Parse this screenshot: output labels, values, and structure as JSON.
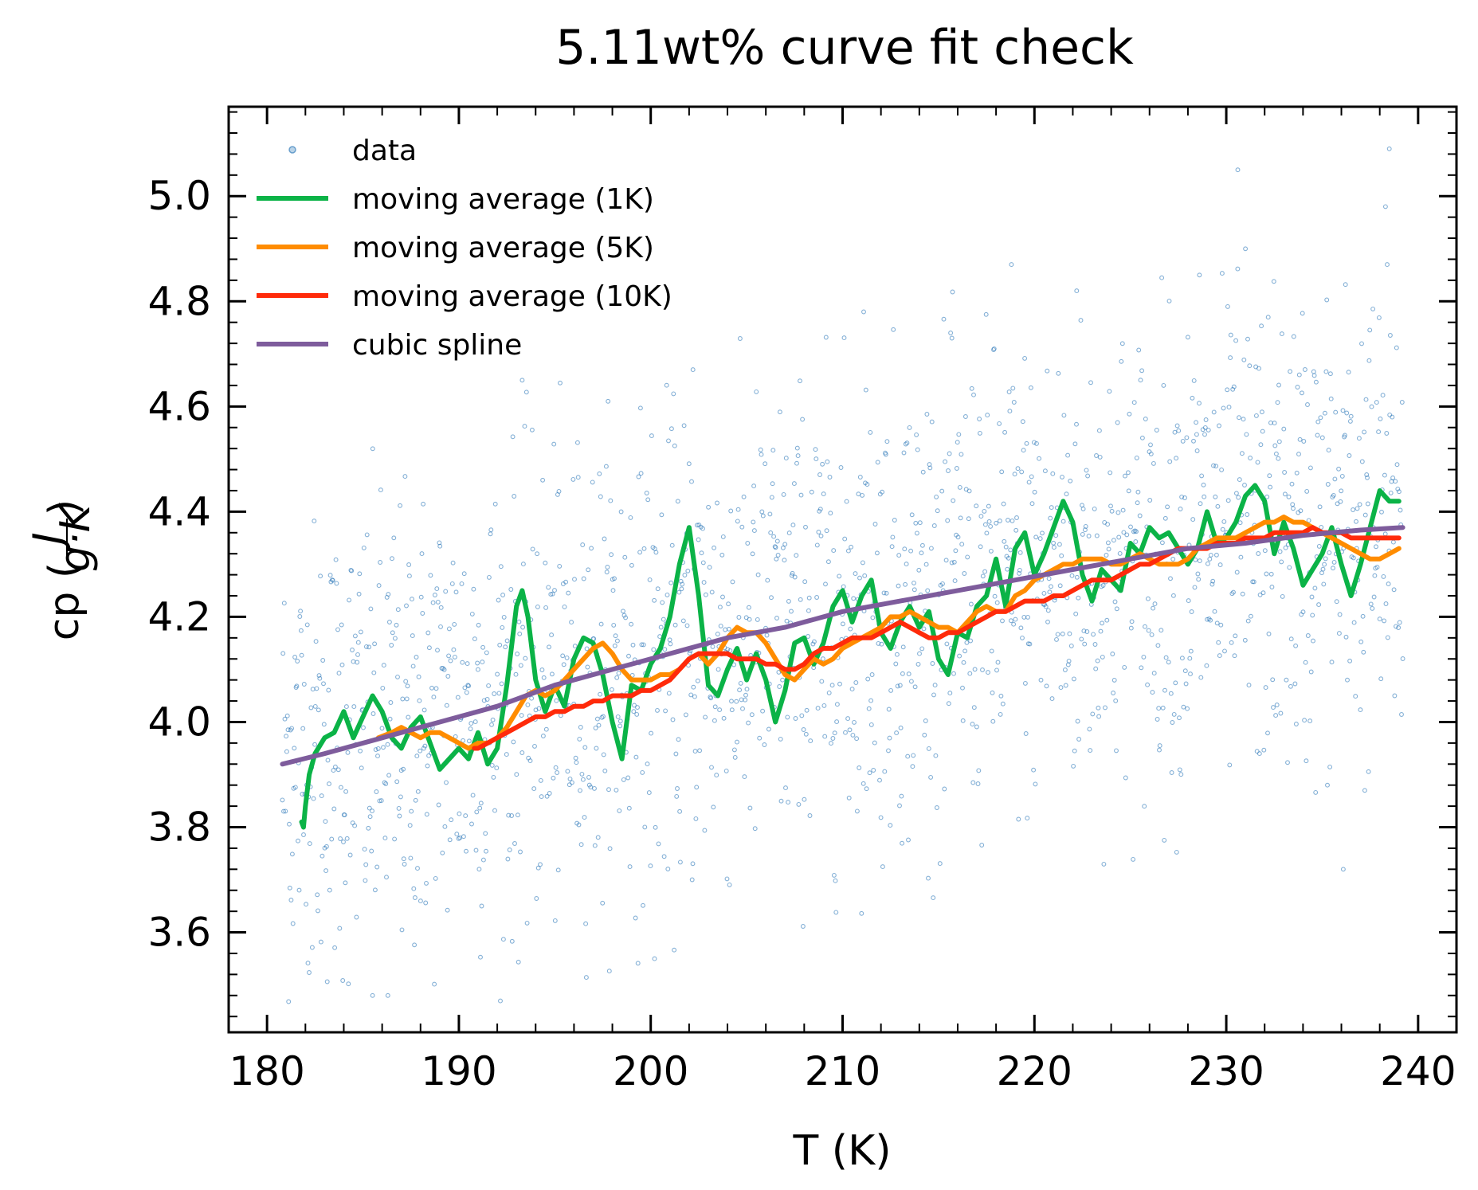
{
  "chart_data": {
    "type": "line",
    "title": "5.11wt% curve fit check",
    "xlabel": "T (K)",
    "ylabel": {
      "base": "cp (",
      "num": "J",
      "den": "g·K",
      "close": ")"
    },
    "xlim": [
      178,
      242
    ],
    "ylim": [
      3.41,
      5.17
    ],
    "xticks": [
      180,
      190,
      200,
      210,
      220,
      230,
      240
    ],
    "yticks": [
      3.6,
      3.8,
      4.0,
      4.2,
      4.4,
      4.6,
      4.8,
      5.0
    ],
    "xtick_labels": [
      "180",
      "190",
      "200",
      "210",
      "220",
      "230",
      "240"
    ],
    "ytick_labels": [
      "3.6",
      "3.8",
      "4.0",
      "4.2",
      "4.4",
      "4.6",
      "4.8",
      "5.0"
    ],
    "grid": false,
    "legend_position": "top-left",
    "series": [
      {
        "name": "data",
        "kind": "scatter",
        "color": "#1f6fb4",
        "x_range": [
          180.8,
          239.2
        ],
        "count": 1800,
        "trend": {
          "x": [
            181,
            190,
            200,
            210,
            220,
            230,
            239
          ],
          "y": [
            3.92,
            4.02,
            4.12,
            4.2,
            4.28,
            4.34,
            4.37
          ]
        },
        "spread_sd": 0.22,
        "outliers": [
          [
            185.5,
            3.48
          ],
          [
            186.3,
            3.48
          ],
          [
            193.3,
            4.65
          ],
          [
            200.2,
            3.55
          ],
          [
            202.2,
            4.67
          ],
          [
            211.1,
            4.78
          ],
          [
            215.7,
            4.73
          ],
          [
            218.8,
            4.87
          ],
          [
            222.2,
            4.82
          ],
          [
            228.6,
            4.85
          ],
          [
            230.6,
            5.05
          ],
          [
            231.0,
            4.9
          ],
          [
            238.5,
            5.09
          ],
          [
            238.3,
            4.98
          ],
          [
            236.1,
            3.72
          ]
        ]
      },
      {
        "name": "moving average (1K)",
        "kind": "line",
        "color": "#0bb347",
        "x": [
          181.8,
          181.9,
          182.0,
          182.2,
          182.5,
          183.0,
          183.5,
          184.0,
          184.5,
          185.0,
          185.5,
          186.0,
          186.5,
          187.0,
          187.5,
          188.0,
          188.5,
          189.0,
          189.5,
          190.0,
          190.5,
          191.0,
          191.5,
          192.0,
          192.5,
          193.0,
          193.3,
          193.6,
          194.0,
          194.5,
          195.0,
          195.5,
          196.0,
          196.5,
          197.0,
          197.5,
          198.0,
          198.5,
          199.0,
          199.5,
          200.0,
          200.5,
          201.0,
          201.5,
          202.0,
          202.5,
          203.0,
          203.5,
          204.0,
          204.5,
          205.0,
          205.5,
          206.0,
          206.5,
          207.0,
          207.5,
          208.0,
          208.5,
          209.0,
          209.5,
          210.0,
          210.5,
          211.0,
          211.5,
          212.0,
          212.5,
          213.0,
          213.5,
          214.0,
          214.5,
          215.0,
          215.5,
          216.0,
          216.5,
          217.0,
          217.5,
          218.0,
          218.5,
          219.0,
          219.5,
          220.0,
          220.5,
          221.0,
          221.5,
          222.0,
          222.5,
          223.0,
          223.5,
          224.0,
          224.5,
          225.0,
          225.5,
          226.0,
          226.5,
          227.0,
          227.5,
          228.0,
          228.5,
          229.0,
          229.5,
          230.0,
          230.5,
          231.0,
          231.5,
          232.0,
          232.5,
          233.0,
          233.5,
          234.0,
          234.5,
          235.0,
          235.5,
          236.0,
          236.5,
          237.0,
          237.5,
          238.0,
          238.5,
          239.0
        ],
        "y": [
          3.81,
          3.8,
          3.84,
          3.9,
          3.94,
          3.97,
          3.98,
          4.02,
          3.97,
          4.01,
          4.05,
          4.02,
          3.97,
          3.95,
          3.99,
          4.01,
          3.96,
          3.91,
          3.93,
          3.95,
          3.93,
          3.98,
          3.92,
          3.95,
          4.07,
          4.22,
          4.25,
          4.2,
          4.08,
          4.02,
          4.07,
          4.03,
          4.12,
          4.16,
          4.15,
          4.09,
          4.0,
          3.93,
          4.07,
          4.06,
          4.11,
          4.14,
          4.2,
          4.3,
          4.37,
          4.24,
          4.07,
          4.05,
          4.1,
          4.14,
          4.08,
          4.13,
          4.08,
          4.0,
          4.06,
          4.15,
          4.16,
          4.11,
          4.15,
          4.22,
          4.25,
          4.19,
          4.24,
          4.27,
          4.17,
          4.14,
          4.19,
          4.22,
          4.18,
          4.21,
          4.12,
          4.09,
          4.17,
          4.16,
          4.22,
          4.24,
          4.31,
          4.22,
          4.33,
          4.36,
          4.28,
          4.32,
          4.37,
          4.42,
          4.38,
          4.28,
          4.23,
          4.29,
          4.27,
          4.25,
          4.34,
          4.32,
          4.37,
          4.35,
          4.36,
          4.33,
          4.3,
          4.33,
          4.4,
          4.34,
          4.35,
          4.38,
          4.43,
          4.45,
          4.42,
          4.32,
          4.38,
          4.33,
          4.26,
          4.29,
          4.32,
          4.37,
          4.3,
          4.24,
          4.3,
          4.37,
          4.44,
          4.42,
          4.42
        ]
      },
      {
        "name": "moving average (5K)",
        "kind": "line",
        "color": "#ff8c00",
        "x": [
          185.8,
          186.5,
          187.0,
          187.5,
          188.0,
          188.5,
          189.0,
          189.5,
          190.0,
          190.5,
          191.0,
          191.5,
          192.0,
          192.5,
          193.0,
          193.5,
          194.0,
          194.5,
          195.0,
          195.5,
          196.0,
          196.5,
          197.0,
          197.5,
          198.0,
          198.5,
          199.0,
          199.5,
          200.0,
          200.5,
          201.0,
          201.5,
          202.0,
          202.5,
          203.0,
          203.5,
          204.0,
          204.5,
          205.0,
          205.5,
          206.0,
          206.5,
          207.0,
          207.5,
          208.0,
          208.5,
          209.0,
          209.5,
          210.0,
          210.5,
          211.0,
          211.5,
          212.0,
          212.5,
          213.0,
          213.5,
          214.0,
          214.5,
          215.0,
          215.5,
          216.0,
          216.5,
          217.0,
          217.5,
          218.0,
          218.5,
          219.0,
          219.5,
          220.0,
          220.5,
          221.0,
          221.5,
          222.0,
          222.5,
          223.0,
          223.5,
          224.0,
          224.5,
          225.0,
          225.5,
          226.0,
          226.5,
          227.0,
          227.5,
          228.0,
          228.5,
          229.0,
          229.5,
          230.0,
          230.5,
          231.0,
          231.5,
          232.0,
          232.5,
          233.0,
          233.5,
          234.0,
          234.5,
          235.0,
          235.5,
          236.0,
          236.5,
          237.0,
          237.5,
          238.0,
          238.5,
          239.0
        ],
        "y": [
          3.97,
          3.98,
          3.99,
          3.98,
          3.97,
          3.98,
          3.98,
          3.97,
          3.96,
          3.95,
          3.96,
          3.96,
          3.97,
          3.99,
          4.02,
          4.05,
          4.06,
          4.05,
          4.06,
          4.08,
          4.1,
          4.12,
          4.14,
          4.15,
          4.13,
          4.1,
          4.08,
          4.08,
          4.08,
          4.09,
          4.09,
          4.1,
          4.12,
          4.13,
          4.11,
          4.13,
          4.16,
          4.18,
          4.17,
          4.17,
          4.15,
          4.12,
          4.09,
          4.08,
          4.1,
          4.12,
          4.11,
          4.12,
          4.14,
          4.15,
          4.16,
          4.17,
          4.18,
          4.2,
          4.2,
          4.21,
          4.2,
          4.19,
          4.18,
          4.18,
          4.17,
          4.19,
          4.21,
          4.22,
          4.21,
          4.21,
          4.24,
          4.25,
          4.27,
          4.28,
          4.29,
          4.3,
          4.3,
          4.31,
          4.31,
          4.31,
          4.3,
          4.3,
          4.31,
          4.32,
          4.31,
          4.3,
          4.3,
          4.3,
          4.31,
          4.33,
          4.34,
          4.35,
          4.35,
          4.35,
          4.36,
          4.37,
          4.38,
          4.38,
          4.39,
          4.38,
          4.38,
          4.37,
          4.36,
          4.35,
          4.34,
          4.33,
          4.32,
          4.31,
          4.31,
          4.32,
          4.33
        ]
      },
      {
        "name": "moving average (10K)",
        "kind": "line",
        "color": "#ff2a0a",
        "x": [
          190.8,
          191.0,
          191.5,
          192.0,
          192.5,
          193.0,
          193.5,
          194.0,
          194.5,
          195.0,
          195.5,
          196.0,
          196.5,
          197.0,
          197.5,
          198.0,
          198.5,
          199.0,
          199.5,
          200.0,
          200.5,
          201.0,
          201.5,
          202.0,
          202.5,
          203.0,
          203.5,
          204.0,
          204.5,
          205.0,
          205.5,
          206.0,
          206.5,
          207.0,
          207.5,
          208.0,
          208.5,
          209.0,
          209.5,
          210.0,
          210.5,
          211.0,
          211.5,
          212.0,
          212.5,
          213.0,
          213.5,
          214.0,
          214.5,
          215.0,
          215.5,
          216.0,
          216.5,
          217.0,
          217.5,
          218.0,
          218.5,
          219.0,
          219.5,
          220.0,
          220.5,
          221.0,
          221.5,
          222.0,
          222.5,
          223.0,
          223.5,
          224.0,
          224.5,
          225.0,
          225.5,
          226.0,
          226.5,
          227.0,
          227.5,
          228.0,
          228.5,
          229.0,
          229.5,
          230.0,
          230.5,
          231.0,
          231.5,
          232.0,
          232.5,
          233.0,
          233.5,
          234.0,
          234.5,
          235.0,
          235.5,
          236.0,
          236.5,
          237.0,
          237.5,
          238.0,
          238.5,
          239.0
        ],
        "y": [
          3.95,
          3.95,
          3.96,
          3.97,
          3.98,
          3.99,
          4.0,
          4.01,
          4.01,
          4.02,
          4.02,
          4.03,
          4.03,
          4.04,
          4.04,
          4.05,
          4.05,
          4.05,
          4.06,
          4.06,
          4.07,
          4.08,
          4.1,
          4.12,
          4.13,
          4.13,
          4.13,
          4.13,
          4.12,
          4.12,
          4.12,
          4.11,
          4.11,
          4.1,
          4.1,
          4.11,
          4.13,
          4.14,
          4.14,
          4.15,
          4.16,
          4.16,
          4.16,
          4.17,
          4.18,
          4.19,
          4.18,
          4.17,
          4.16,
          4.16,
          4.17,
          4.17,
          4.18,
          4.19,
          4.2,
          4.21,
          4.21,
          4.22,
          4.23,
          4.23,
          4.23,
          4.24,
          4.24,
          4.25,
          4.26,
          4.27,
          4.27,
          4.27,
          4.28,
          4.29,
          4.3,
          4.3,
          4.31,
          4.32,
          4.33,
          4.33,
          4.33,
          4.33,
          4.34,
          4.34,
          4.34,
          4.35,
          4.35,
          4.35,
          4.36,
          4.36,
          4.36,
          4.36,
          4.37,
          4.36,
          4.36,
          4.36,
          4.35,
          4.35,
          4.35,
          4.35,
          4.35,
          4.35
        ]
      },
      {
        "name": "cubic spline",
        "kind": "line",
        "color": "#7e5c9c",
        "x": [
          180.8,
          183,
          186,
          189,
          192,
          195,
          198,
          201,
          204,
          207,
          210,
          213,
          216,
          219,
          222,
          225,
          228,
          231,
          234,
          237,
          239.2
        ],
        "y": [
          3.92,
          3.94,
          3.97,
          4.0,
          4.03,
          4.07,
          4.1,
          4.13,
          4.16,
          4.18,
          4.21,
          4.23,
          4.25,
          4.27,
          4.29,
          4.31,
          4.33,
          4.34,
          4.355,
          4.365,
          4.37
        ]
      }
    ]
  }
}
